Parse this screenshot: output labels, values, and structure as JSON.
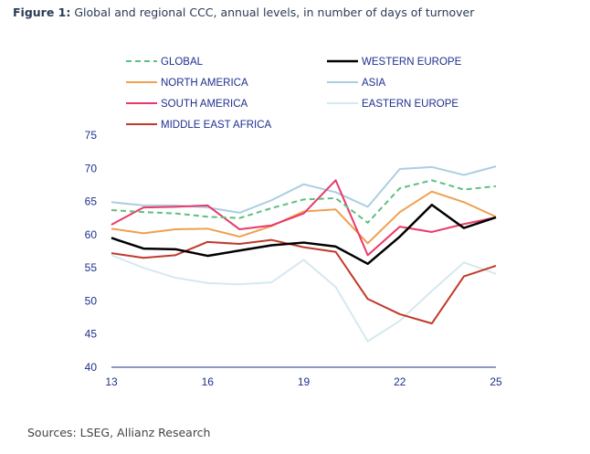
{
  "figure": {
    "label": "Figure 1:",
    "title": "Global and regional CCC, annual levels, in number of days of turnover",
    "source": "Sources: LSEG, Allianz Research"
  },
  "chart_data": {
    "type": "line",
    "x": [
      13,
      14,
      15,
      16,
      17,
      18,
      19,
      20,
      21,
      22,
      23,
      24,
      25
    ],
    "xticks": [
      "13",
      "16",
      "19",
      "22",
      "25"
    ],
    "xtick_values": [
      13,
      16,
      19,
      22,
      25
    ],
    "yticks": [
      "40",
      "45",
      "50",
      "55",
      "60",
      "65",
      "70",
      "75"
    ],
    "ytick_values": [
      40,
      45,
      50,
      55,
      60,
      65,
      70,
      75
    ],
    "ylim": [
      40,
      75
    ],
    "xlim": [
      13,
      25
    ],
    "grid": false,
    "legend_position": "top",
    "series": [
      {
        "name": "GLOBAL",
        "color": "#5fbf7f",
        "dash": "dashed",
        "values": [
          63.7,
          63.4,
          63.2,
          62.7,
          62.5,
          64.0,
          65.3,
          65.5,
          61.8,
          67.0,
          68.2,
          66.8,
          67.3
        ]
      },
      {
        "name": "WESTERN EUROPE",
        "color": "#000000",
        "dash": "solid",
        "values": [
          59.5,
          57.9,
          57.8,
          56.8,
          57.6,
          58.4,
          58.8,
          58.2,
          55.6,
          59.7,
          64.5,
          61.0,
          62.6
        ]
      },
      {
        "name": "NORTH AMERICA",
        "color": "#f0a050",
        "dash": "solid",
        "values": [
          60.9,
          60.2,
          60.8,
          60.9,
          59.7,
          61.3,
          63.5,
          63.8,
          58.7,
          63.4,
          66.5,
          64.9,
          62.7
        ]
      },
      {
        "name": "ASIA",
        "color": "#a9cfe0",
        "dash": "solid",
        "values": [
          64.9,
          64.4,
          64.4,
          64.1,
          63.3,
          65.2,
          67.6,
          66.4,
          64.2,
          69.9,
          70.2,
          69.0,
          70.3
        ]
      },
      {
        "name": "SOUTH AMERICA",
        "color": "#e8396a",
        "dash": "solid",
        "values": [
          61.5,
          64.1,
          64.2,
          64.4,
          60.8,
          61.4,
          63.2,
          68.2,
          56.9,
          61.2,
          60.4,
          61.6,
          62.6
        ]
      },
      {
        "name": "EASTERN EUROPE",
        "color": "#d6e8f0",
        "dash": "solid",
        "values": [
          56.9,
          55.0,
          53.5,
          52.7,
          52.5,
          52.8,
          56.2,
          52.1,
          43.9,
          47.0,
          51.5,
          55.8,
          54.1
        ]
      },
      {
        "name": "MIDDLE EAST AFRICA",
        "color": "#c0392b",
        "dash": "solid",
        "values": [
          57.2,
          56.5,
          56.9,
          58.9,
          58.6,
          59.2,
          58.1,
          57.4,
          50.3,
          48.0,
          46.6,
          53.7,
          55.3
        ]
      }
    ]
  }
}
